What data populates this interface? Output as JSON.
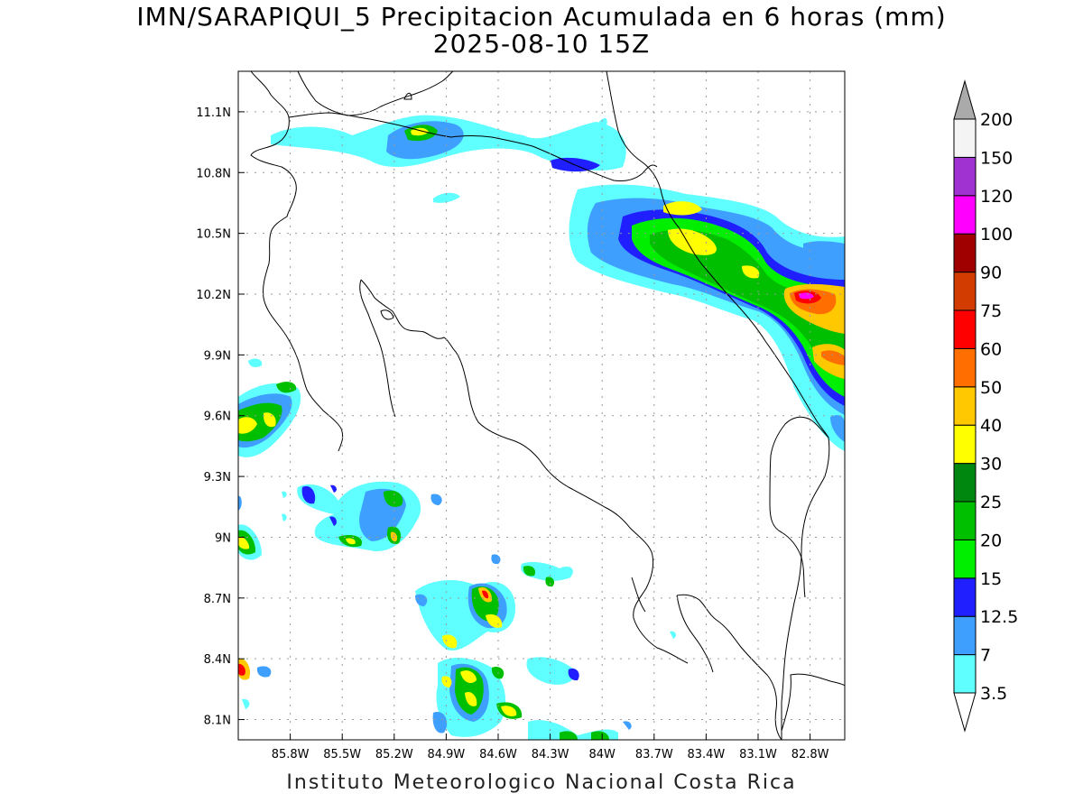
{
  "title": "IMN/SARAPIQUI_5 Precipitacion Acumulada en 6 horas (mm)",
  "subtitle": "2025-08-10 15Z",
  "footer": "Instituto Meteorologico Nacional Costa Rica",
  "map": {
    "lon_range": [
      -86.1,
      -82.6
    ],
    "lat_range": [
      8.0,
      11.3
    ],
    "x_ticks": [
      "85.8W",
      "85.5W",
      "85.2W",
      "84.9W",
      "84.6W",
      "84.3W",
      "84W",
      "83.7W",
      "83.4W",
      "83.1W",
      "82.8W"
    ],
    "x_tick_values": [
      -85.8,
      -85.5,
      -85.2,
      -84.9,
      -84.6,
      -84.3,
      -84.0,
      -83.7,
      -83.4,
      -83.1,
      -82.8
    ],
    "y_ticks": [
      "11.1N",
      "10.8N",
      "10.5N",
      "10.2N",
      "9.9N",
      "9.6N",
      "9.3N",
      "9N",
      "8.7N",
      "8.4N",
      "8.1N"
    ],
    "y_tick_values": [
      11.1,
      10.8,
      10.5,
      10.2,
      9.9,
      9.6,
      9.3,
      9.0,
      8.7,
      8.4,
      8.1
    ],
    "grid": true,
    "grid_style": "dotted"
  },
  "colorbar": {
    "placement": "right",
    "labels": [
      "3.5",
      "7",
      "12.5",
      "15",
      "20",
      "25",
      "30",
      "40",
      "50",
      "60",
      "75",
      "90",
      "100",
      "120",
      "150",
      "200"
    ],
    "colors": [
      "#5fffff",
      "#3f9fff",
      "#1f1fff",
      "#00ef00",
      "#00bf00",
      "#00870f",
      "#ffff00",
      "#ffc800",
      "#ff6e00",
      "#ff0000",
      "#d23c00",
      "#a00000",
      "#ff00ff",
      "#a032d2",
      "#f4f4f4"
    ],
    "under_color": "#ffffff",
    "over_color": "#aaaaaa"
  }
}
